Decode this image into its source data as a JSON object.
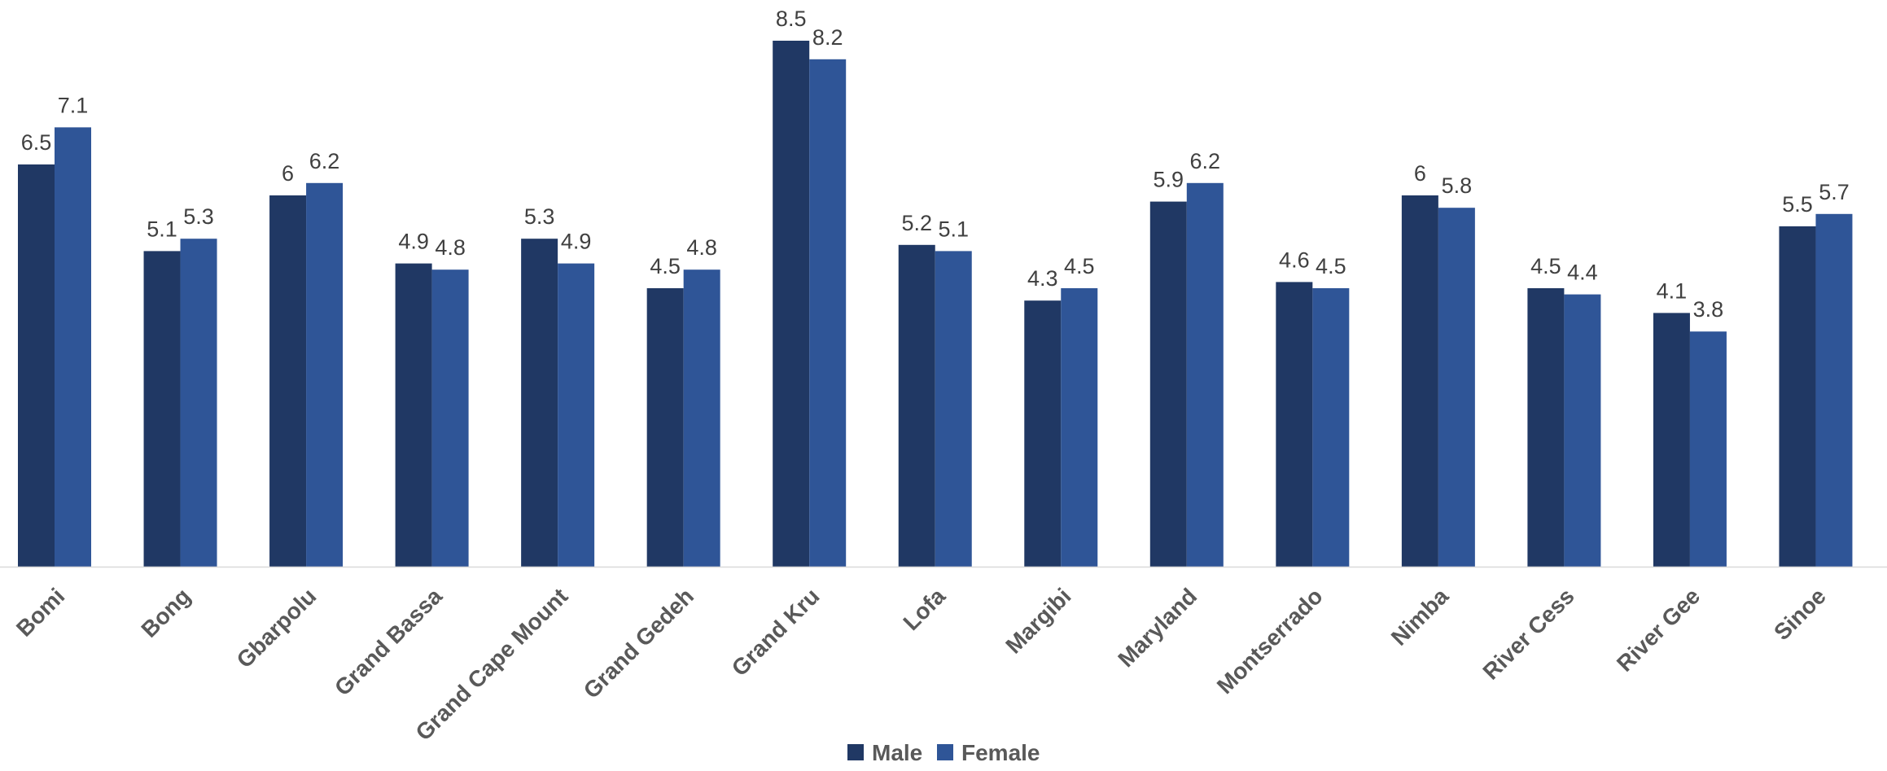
{
  "chart_data": {
    "type": "bar",
    "categories": [
      "Bomi",
      "Bong",
      "Gbarpolu",
      "Grand Bassa",
      "Grand Cape Mount",
      "Grand Gedeh",
      "Grand Kru",
      "Lofa",
      "Margibi",
      "Maryland",
      "Montserrado",
      "Nimba",
      "River Cess",
      "River Gee",
      "Sinoe"
    ],
    "series": [
      {
        "name": "Male",
        "color": "#203864",
        "values": [
          6.5,
          5.1,
          6,
          4.9,
          5.3,
          4.5,
          8.5,
          5.2,
          4.3,
          5.9,
          4.6,
          6,
          4.5,
          4.1,
          5.5
        ]
      },
      {
        "name": "Female",
        "color": "#2F5597",
        "values": [
          7.1,
          5.3,
          6.2,
          4.8,
          4.9,
          4.8,
          8.2,
          5.1,
          4.5,
          6.2,
          4.5,
          5.8,
          4.4,
          3.8,
          5.7
        ]
      }
    ],
    "ylim": [
      0,
      9
    ],
    "grid": false,
    "legend": "bottom-center",
    "data_labels": true
  }
}
